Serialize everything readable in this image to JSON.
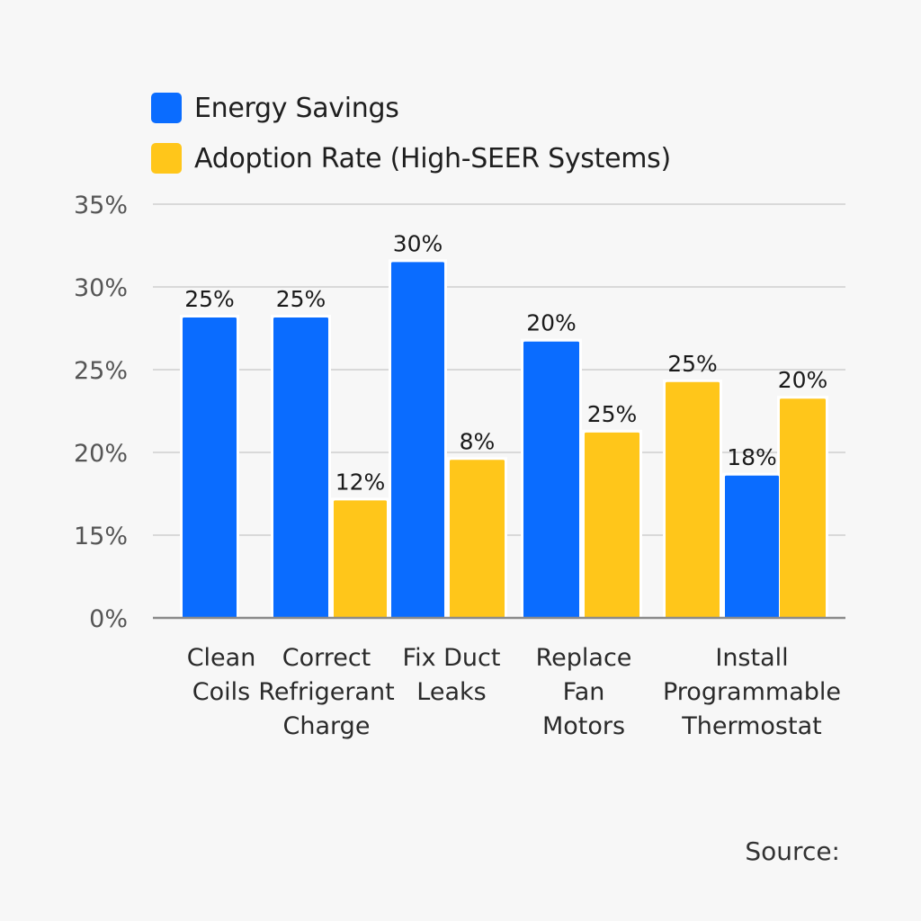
{
  "chart_data": {
    "type": "bar",
    "title": "",
    "xlabel": "",
    "ylabel": "",
    "y_tick_labels": [
      "0%",
      "15%",
      "20%",
      "25%",
      "30%",
      "35%"
    ],
    "y_axis_note": "tick labels are evenly spaced (non-linear scale: 0%, 15%, 20%, 25%, 30%, 35%)",
    "grid": true,
    "legend_position": "top-left",
    "colors": {
      "Energy Savings": "#0a6cff",
      "Adoption Rate (High-SEER Systems)": "#ffc61a"
    },
    "categories": [
      [
        "Clean",
        "Coils"
      ],
      [
        "Correct",
        "Refrigerant",
        "Charge"
      ],
      [
        "Fix Duct",
        "Leaks"
      ],
      [
        "Replace",
        "Fan",
        "Motors"
      ],
      [
        "Install",
        "Programmable",
        "Thermostat"
      ]
    ],
    "series": [
      {
        "name": "Energy Savings",
        "color": "#0a6cff"
      },
      {
        "name": "Adoption Rate (High-SEER Systems)",
        "color": "#ffc61a"
      }
    ],
    "bars": [
      {
        "category": 0,
        "series": "Energy Savings",
        "label": "25%",
        "visual_value": 3.63
      },
      {
        "category": 1,
        "series": "Energy Savings",
        "label": "25%",
        "visual_value": 3.63
      },
      {
        "category": 1,
        "series": "Adoption Rate (High-SEER Systems)",
        "label": "12%",
        "visual_value": 1.42
      },
      {
        "category": 2,
        "series": "Energy Savings",
        "label": "30%",
        "visual_value": 4.3
      },
      {
        "category": 2,
        "series": "Adoption Rate (High-SEER Systems)",
        "label": "8%",
        "visual_value": 1.91
      },
      {
        "category": 3,
        "series": "Energy Savings",
        "label": "20%",
        "visual_value": 3.34
      },
      {
        "category": 3,
        "series": "Adoption Rate (High-SEER Systems)",
        "label": "25%",
        "visual_value": 2.24
      },
      {
        "category": 4,
        "series": "Adoption Rate (High-SEER Systems)",
        "label": "25%",
        "visual_value": 2.85
      },
      {
        "category": 4,
        "series": "Energy Savings",
        "label": "18%",
        "visual_value": 1.72
      },
      {
        "category": 4,
        "series": "Adoption Rate (High-SEER Systems)",
        "label": "20%",
        "visual_value": 2.65
      }
    ],
    "visual_value_unit": "tick steps above baseline (1 step = one gridline interval)"
  },
  "legend": {
    "items": [
      {
        "label": "Energy Savings",
        "color": "#0a6cff"
      },
      {
        "label": "Adoption Rate (High-SEER Systems)",
        "color": "#ffc61a"
      }
    ]
  },
  "footer": {
    "source": "Source:"
  }
}
